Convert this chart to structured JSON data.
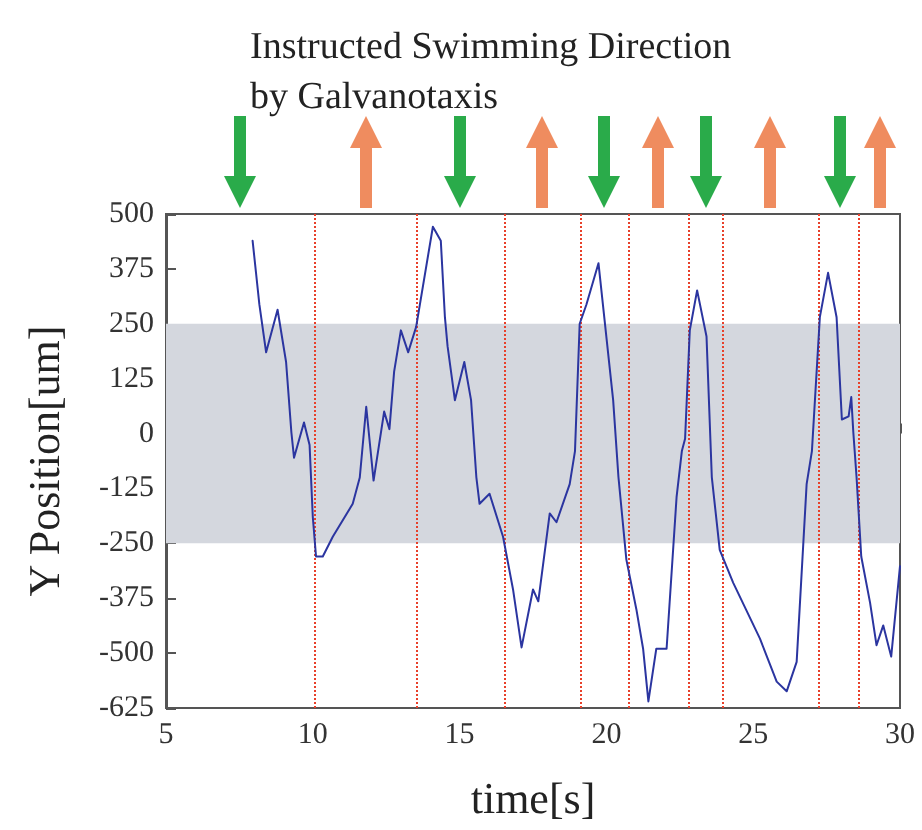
{
  "chart_data": {
    "type": "line",
    "title": "Instructed Swimming Direction\nby Galvanotaxis",
    "xlabel": "time[s]",
    "ylabel": "Y Position[um]",
    "xlim": [
      5,
      30
    ],
    "xticks": [
      5,
      10,
      15,
      20,
      25,
      30
    ],
    "ylim": [
      -625,
      500
    ],
    "yticks": [
      -625,
      -500,
      -375,
      -250,
      -125,
      0,
      125,
      250,
      375,
      500
    ],
    "grid": false,
    "marker": "none",
    "line_style": "solid",
    "series": [
      {
        "color": "#2b35a0",
        "x": [
          7.95,
          8.18,
          8.41,
          8.8,
          9.09,
          9.27,
          9.36,
          9.7,
          9.89,
          10.0,
          10.11,
          10.34,
          10.68,
          11.36,
          11.6,
          11.82,
          12.07,
          12.43,
          12.61,
          12.77,
          13.0,
          13.25,
          13.52,
          14.09,
          14.36,
          14.5,
          14.59,
          14.84,
          15.16,
          15.39,
          15.57,
          15.68,
          16.02,
          16.48,
          16.82,
          17.11,
          17.5,
          17.68,
          18.07,
          18.3,
          18.75,
          18.93,
          19.09,
          19.32,
          19.73,
          20.23,
          20.41,
          20.68,
          21.02,
          21.25,
          21.43,
          21.7,
          22.05,
          22.39,
          22.57,
          22.68,
          22.84,
          23.09,
          23.41,
          23.59,
          23.86,
          24.32,
          25.23,
          25.8,
          26.14,
          26.48,
          26.82,
          27.0,
          27.27,
          27.55,
          27.84,
          28.02,
          28.25,
          28.34,
          28.41,
          28.52,
          28.68,
          28.98,
          29.2,
          29.43,
          29.7,
          30.0
        ],
        "values": [
          439,
          294,
          185,
          282,
          163,
          3,
          -55,
          25,
          -26,
          -190,
          -280,
          -280,
          -235,
          -160,
          -100,
          61,
          -107,
          50,
          10,
          141,
          235,
          185,
          243,
          471,
          439,
          265,
          199,
          76,
          163,
          76,
          -99,
          -160,
          -137,
          -235,
          -355,
          -487,
          -355,
          -382,
          -182,
          -202,
          -115,
          -40,
          250,
          294,
          388,
          76,
          -99,
          -287,
          -400,
          -490,
          -610,
          -490,
          -490,
          -145,
          -40,
          -12,
          235,
          326,
          221,
          -99,
          -265,
          -340,
          -467,
          -565,
          -587,
          -520,
          -115,
          -40,
          265,
          366,
          265,
          32,
          39,
          83,
          3,
          -99,
          -280,
          -385,
          -482,
          -437,
          -508,
          -302
        ]
      }
    ],
    "bands": [
      {
        "axis": "y",
        "from": -250,
        "to": 250,
        "color": "#d4d7de"
      }
    ],
    "ref_lines": [
      {
        "axis": "x",
        "value": 10.05,
        "color": "#e8402a",
        "line_style": "dotted"
      },
      {
        "axis": "x",
        "value": 13.55,
        "color": "#e8402a",
        "line_style": "dotted"
      },
      {
        "axis": "x",
        "value": 16.5,
        "color": "#e8402a",
        "line_style": "dotted"
      },
      {
        "axis": "x",
        "value": 19.1,
        "color": "#e8402a",
        "line_style": "dotted"
      },
      {
        "axis": "x",
        "value": 20.75,
        "color": "#e8402a",
        "line_style": "dotted"
      },
      {
        "axis": "x",
        "value": 22.8,
        "color": "#e8402a",
        "line_style": "dotted"
      },
      {
        "axis": "x",
        "value": 23.95,
        "color": "#e8402a",
        "line_style": "dotted"
      },
      {
        "axis": "x",
        "value": 27.25,
        "color": "#e8402a",
        "line_style": "dotted"
      },
      {
        "axis": "x",
        "value": 28.6,
        "color": "#e8402a",
        "line_style": "dotted"
      }
    ]
  }
}
